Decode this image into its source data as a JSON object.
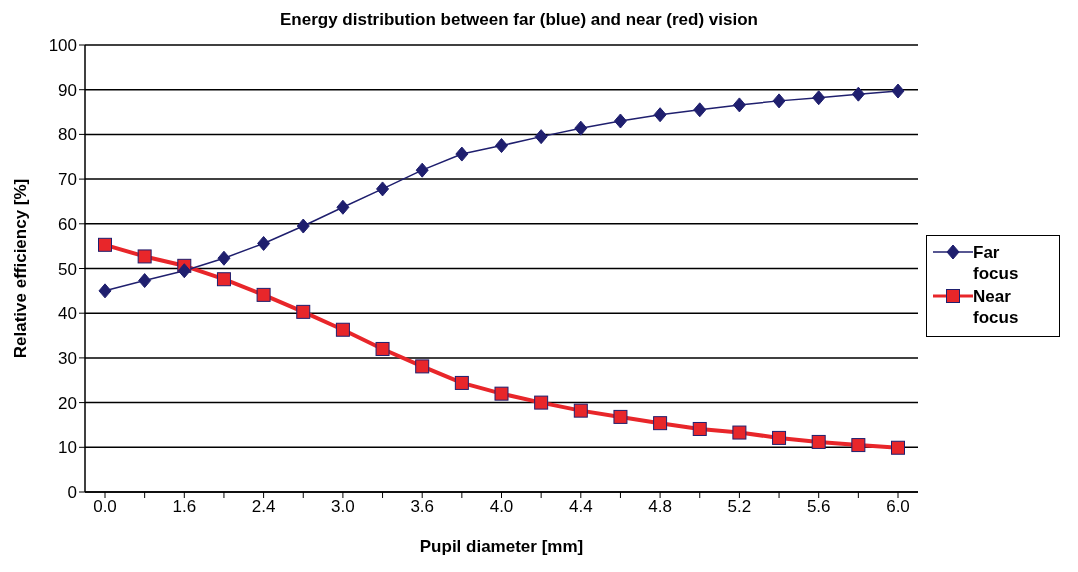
{
  "chart_data": {
    "type": "line",
    "title": "Energy distribution between far (blue) and near (red) vision",
    "xlabel": "Pupil diameter [mm]",
    "ylabel": "Relative efficiency [%]",
    "categories": [
      "0.0",
      null,
      "1.6",
      null,
      "2.4",
      null,
      "3.0",
      null,
      "3.6",
      null,
      "4.0",
      null,
      "4.4",
      null,
      "4.8",
      null,
      "5.2",
      null,
      "5.6",
      null,
      "6.0"
    ],
    "series": [
      {
        "name": "Far focus",
        "color": "#1f1f6e",
        "marker": "diamond",
        "values": [
          45,
          47.3,
          49.5,
          52.3,
          55.6,
          59.5,
          63.7,
          67.8,
          72,
          75.6,
          77.5,
          79.5,
          81.4,
          83,
          84.4,
          85.5,
          86.6,
          87.5,
          88.2,
          89,
          89.7
        ]
      },
      {
        "name": "Near focus",
        "color": "#e8262a",
        "marker": "square",
        "values": [
          55.3,
          52.7,
          50.6,
          47.6,
          44.1,
          40.3,
          36.3,
          32,
          28.1,
          24.4,
          22,
          20,
          18.2,
          16.8,
          15.4,
          14.1,
          13.3,
          12.1,
          11.2,
          10.5,
          9.9
        ]
      }
    ],
    "ylim": [
      0,
      100
    ],
    "yticks": [
      0,
      10,
      20,
      30,
      40,
      50,
      60,
      70,
      80,
      90,
      100
    ],
    "grid": "y",
    "legend": "right",
    "line_style": "solid"
  }
}
